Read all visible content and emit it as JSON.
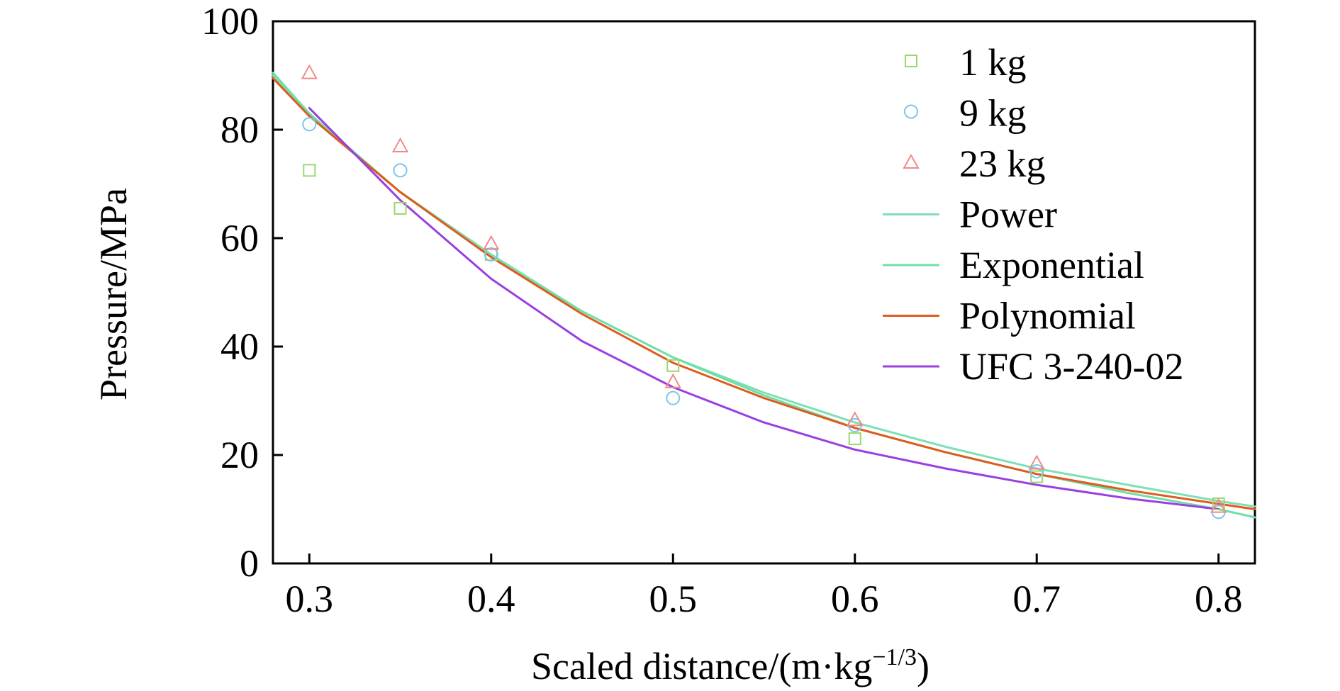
{
  "chart_data": {
    "type": "scatter",
    "xlabel": "Scaled distance/(m·kg",
    "xlabel_superscript": "−1/3",
    "xlabel_suffix": ")",
    "ylabel": "Pressure/MPa",
    "xlim": [
      0.28,
      0.82
    ],
    "ylim": [
      0,
      100
    ],
    "xticks": [
      0.3,
      0.4,
      0.5,
      0.6,
      0.7,
      0.8
    ],
    "xtick_labels": [
      "0.3",
      "0.4",
      "0.5",
      "0.6",
      "0.7",
      "0.8"
    ],
    "yticks": [
      0,
      20,
      40,
      60,
      80,
      100
    ],
    "ytick_labels": [
      "0",
      "20",
      "40",
      "60",
      "80",
      "100"
    ],
    "grid": false,
    "legend_position": "top-right",
    "scatter_series": [
      {
        "name": "1 kg",
        "marker": "square",
        "color": "#9bd86a",
        "x": [
          0.3,
          0.35,
          0.4,
          0.5,
          0.6,
          0.7,
          0.8
        ],
        "y": [
          72.5,
          65.5,
          57.0,
          36.5,
          23.0,
          16.0,
          11.0
        ]
      },
      {
        "name": "9 kg",
        "marker": "circle",
        "color": "#79c7ea",
        "x": [
          0.3,
          0.35,
          0.4,
          0.5,
          0.6,
          0.7,
          0.8
        ],
        "y": [
          81.0,
          72.5,
          57.0,
          30.5,
          25.5,
          17.0,
          9.5
        ]
      },
      {
        "name": "23 kg",
        "marker": "triangle",
        "color": "#f08a8a",
        "x": [
          0.3,
          0.35,
          0.4,
          0.5,
          0.6,
          0.7,
          0.8
        ],
        "y": [
          90.5,
          77.0,
          59.0,
          33.5,
          26.5,
          18.5,
          10.5
        ]
      }
    ],
    "line_series": [
      {
        "name": "Power",
        "color": "#7fdfb5",
        "x": [
          0.28,
          0.3,
          0.35,
          0.4,
          0.45,
          0.5,
          0.55,
          0.6,
          0.65,
          0.7,
          0.75,
          0.8,
          0.82
        ],
        "y": [
          90.0,
          82.5,
          68.5,
          57.0,
          46.5,
          38.0,
          31.5,
          26.0,
          21.5,
          17.5,
          14.5,
          11.5,
          10.5
        ]
      },
      {
        "name": "Exponential",
        "color": "#6ee0a6",
        "x": [
          0.28,
          0.3,
          0.35,
          0.4,
          0.45,
          0.5,
          0.55,
          0.6,
          0.65,
          0.7,
          0.75,
          0.8,
          0.82
        ],
        "y": [
          90.5,
          83.0,
          68.5,
          56.5,
          46.5,
          38.0,
          31.0,
          25.0,
          20.5,
          16.5,
          13.0,
          10.0,
          8.5
        ]
      },
      {
        "name": "Polynomial",
        "color": "#e05a1e",
        "x": [
          0.28,
          0.3,
          0.35,
          0.4,
          0.45,
          0.5,
          0.55,
          0.6,
          0.65,
          0.7,
          0.75,
          0.8,
          0.82
        ],
        "y": [
          89.5,
          82.5,
          68.5,
          56.5,
          46.0,
          37.0,
          30.5,
          25.0,
          20.5,
          16.5,
          13.5,
          11.0,
          10.0
        ]
      },
      {
        "name": "UFC 3-240-02",
        "color": "#9a3fe0",
        "x": [
          0.3,
          0.35,
          0.4,
          0.45,
          0.5,
          0.55,
          0.6,
          0.65,
          0.7,
          0.75,
          0.8
        ],
        "y": [
          84.0,
          67.0,
          52.5,
          41.0,
          32.5,
          26.0,
          21.0,
          17.5,
          14.5,
          12.0,
          10.0
        ]
      }
    ]
  }
}
